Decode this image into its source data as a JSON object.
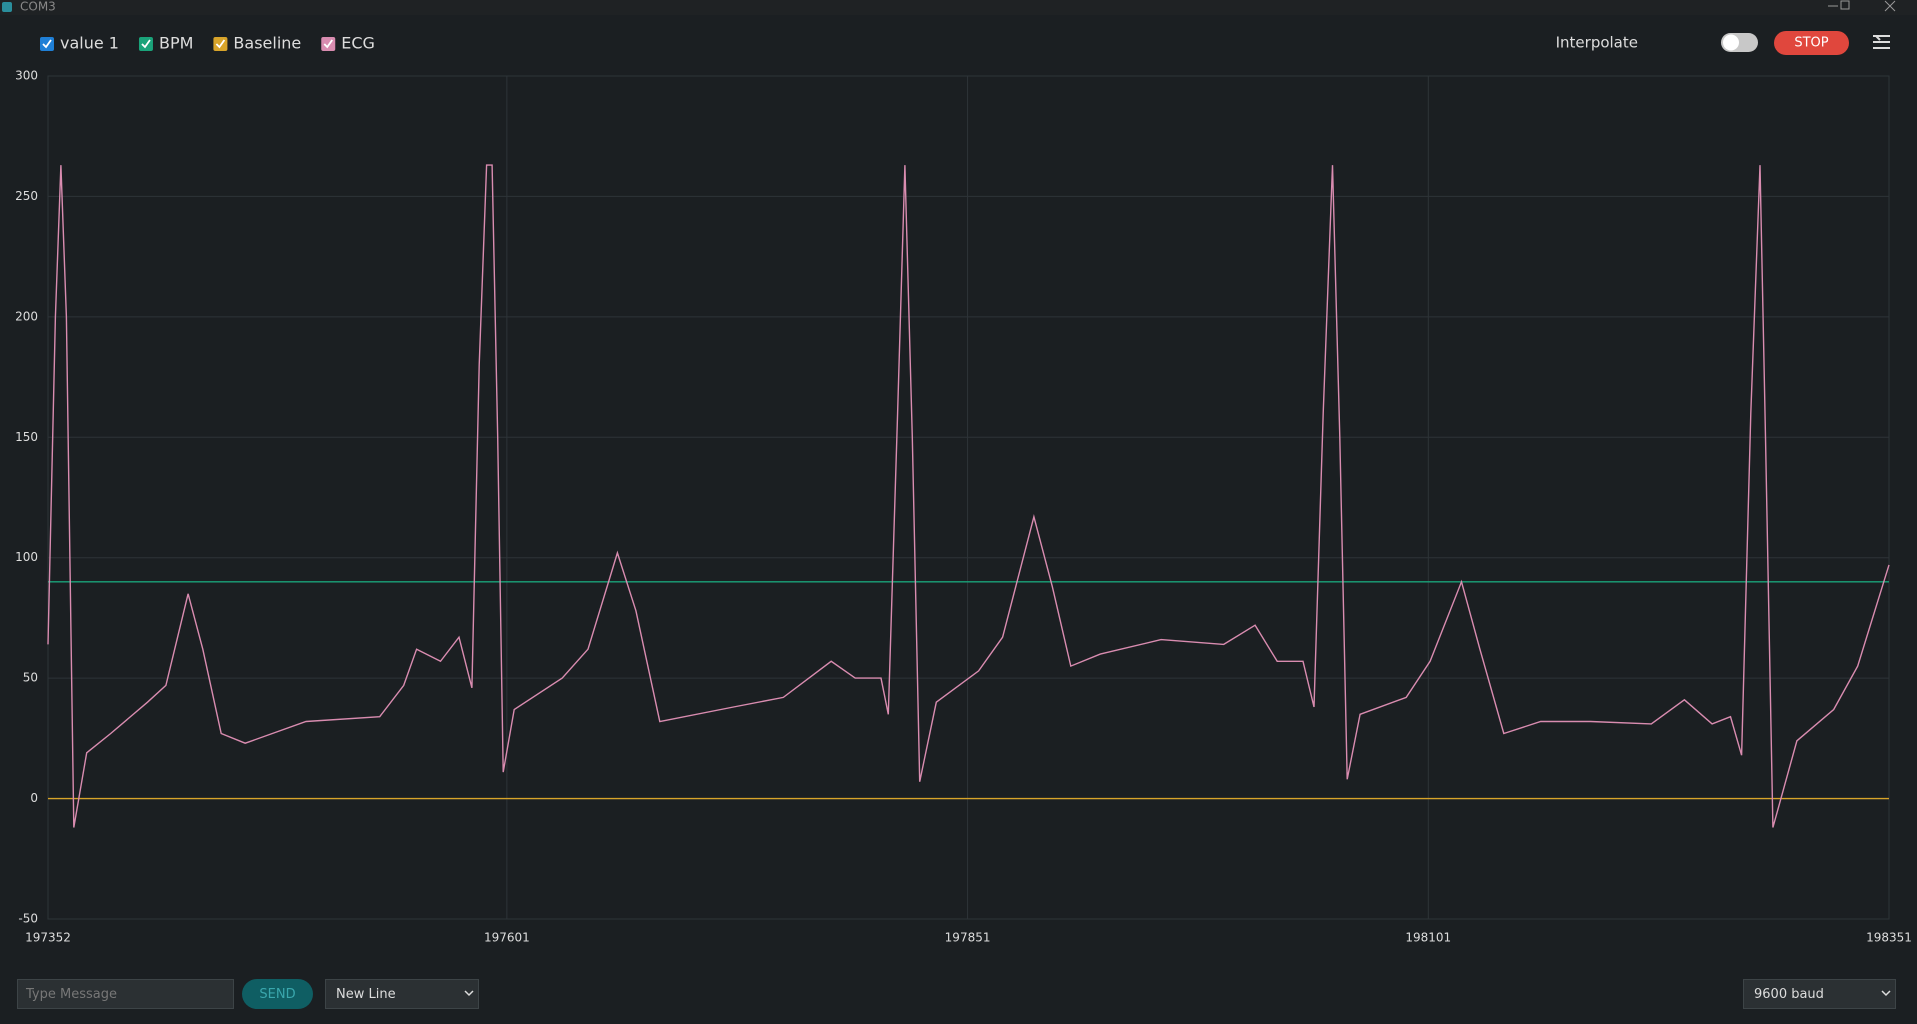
{
  "window": {
    "title": "COM3"
  },
  "toolbar": {
    "interpolate": "Interpolate",
    "stop": "STOP"
  },
  "chart_data": {
    "type": "line",
    "x": [
      197352,
      197356,
      197359,
      197362,
      197366,
      197373,
      197386,
      197406,
      197416,
      197428,
      197436,
      197446,
      197459,
      197492,
      197532,
      197545,
      197552,
      197565,
      197575,
      197582,
      197586,
      197590,
      197593,
      197596,
      197599,
      197605,
      197631,
      197645,
      197661,
      197671,
      197684,
      197724,
      197751,
      197777,
      197790,
      197804,
      197808,
      197813,
      197817,
      197821,
      197825,
      197834,
      197857,
      197870,
      197887,
      197897,
      197907,
      197923,
      197956,
      197990,
      198007,
      198019,
      198033,
      198039,
      198044,
      198049,
      198053,
      198057,
      198064,
      198089,
      198102,
      198119,
      198129,
      198142,
      198162,
      198189,
      198222,
      198240,
      198255,
      198265,
      198271,
      198276,
      198281,
      198284,
      198288,
      198301,
      198321,
      198334,
      198351
    ],
    "series": [
      {
        "name": "value 1",
        "color": "#1f7fd6",
        "values": [
          null,
          null,
          null,
          null,
          null,
          null,
          null,
          null,
          null,
          null,
          null,
          null,
          null,
          null,
          null,
          null,
          null,
          null,
          null,
          null,
          null,
          null,
          null,
          null,
          null,
          null,
          null,
          null,
          null,
          null,
          null,
          null,
          null,
          null,
          null,
          null,
          null,
          null,
          null,
          null,
          null,
          null,
          null,
          null,
          null,
          null,
          null,
          null,
          null,
          null,
          null,
          null,
          null,
          null,
          null,
          null,
          null,
          null,
          null,
          null,
          null,
          null,
          null,
          null,
          null,
          null,
          null,
          null,
          null,
          null,
          null,
          null,
          null,
          null,
          null,
          null,
          null,
          null,
          null
        ]
      },
      {
        "name": "BPM",
        "color": "#1aa37a",
        "values": [
          90,
          90,
          90,
          90,
          90,
          90,
          90,
          90,
          90,
          90,
          90,
          90,
          90,
          90,
          90,
          90,
          90,
          90,
          90,
          90,
          90,
          90,
          90,
          90,
          90,
          90,
          90,
          90,
          90,
          90,
          90,
          90,
          90,
          90,
          90,
          90,
          90,
          90,
          90,
          90,
          90,
          90,
          90,
          90,
          90,
          90,
          90,
          90,
          90,
          90,
          90,
          90,
          90,
          90,
          90,
          90,
          90,
          90,
          90,
          90,
          90,
          90,
          90,
          90,
          90,
          90,
          90,
          90,
          90,
          90,
          90,
          90,
          90,
          90,
          90,
          90,
          90,
          90,
          90
        ]
      },
      {
        "name": "Baseline",
        "color": "#d8a42a",
        "values": [
          0,
          0,
          0,
          0,
          0,
          0,
          0,
          0,
          0,
          0,
          0,
          0,
          0,
          0,
          0,
          0,
          0,
          0,
          0,
          0,
          0,
          0,
          0,
          0,
          0,
          0,
          0,
          0,
          0,
          0,
          0,
          0,
          0,
          0,
          0,
          0,
          0,
          0,
          0,
          0,
          0,
          0,
          0,
          0,
          0,
          0,
          0,
          0,
          0,
          0,
          0,
          0,
          0,
          0,
          0,
          0,
          0,
          0,
          0,
          0,
          0,
          0,
          0,
          0,
          0,
          0,
          0,
          0,
          0,
          0,
          0,
          0,
          0,
          0,
          0,
          0,
          0,
          0,
          0
        ]
      },
      {
        "name": "ECG",
        "color": "#d98cb0",
        "values": [
          64,
          200,
          263,
          200,
          -12,
          19,
          27,
          40,
          47,
          85,
          62,
          27,
          23,
          32,
          34,
          47,
          62,
          57,
          67,
          46,
          180,
          263,
          263,
          150,
          11,
          37,
          50,
          62,
          102,
          78,
          32,
          38,
          42,
          57,
          50,
          50,
          35,
          160,
          263,
          150,
          7,
          40,
          53,
          67,
          117,
          88,
          55,
          60,
          66,
          64,
          72,
          57,
          57,
          38,
          160,
          263,
          150,
          8,
          35,
          42,
          57,
          90,
          62,
          27,
          32,
          32,
          31,
          41,
          31,
          34,
          18,
          160,
          263,
          150,
          -12,
          24,
          37,
          55,
          97
        ]
      }
    ],
    "xlim": [
      197352,
      198351
    ],
    "xticks": [
      197352,
      197601,
      197851,
      198101,
      198351
    ],
    "ylim": [
      -50,
      300
    ],
    "yticks": [
      -50,
      0,
      50,
      100,
      150,
      200,
      250,
      300
    ],
    "grid": true
  },
  "footer": {
    "message_placeholder": "Type Message",
    "send": "SEND",
    "line_ending": "New Line",
    "baud": "9600 baud"
  }
}
